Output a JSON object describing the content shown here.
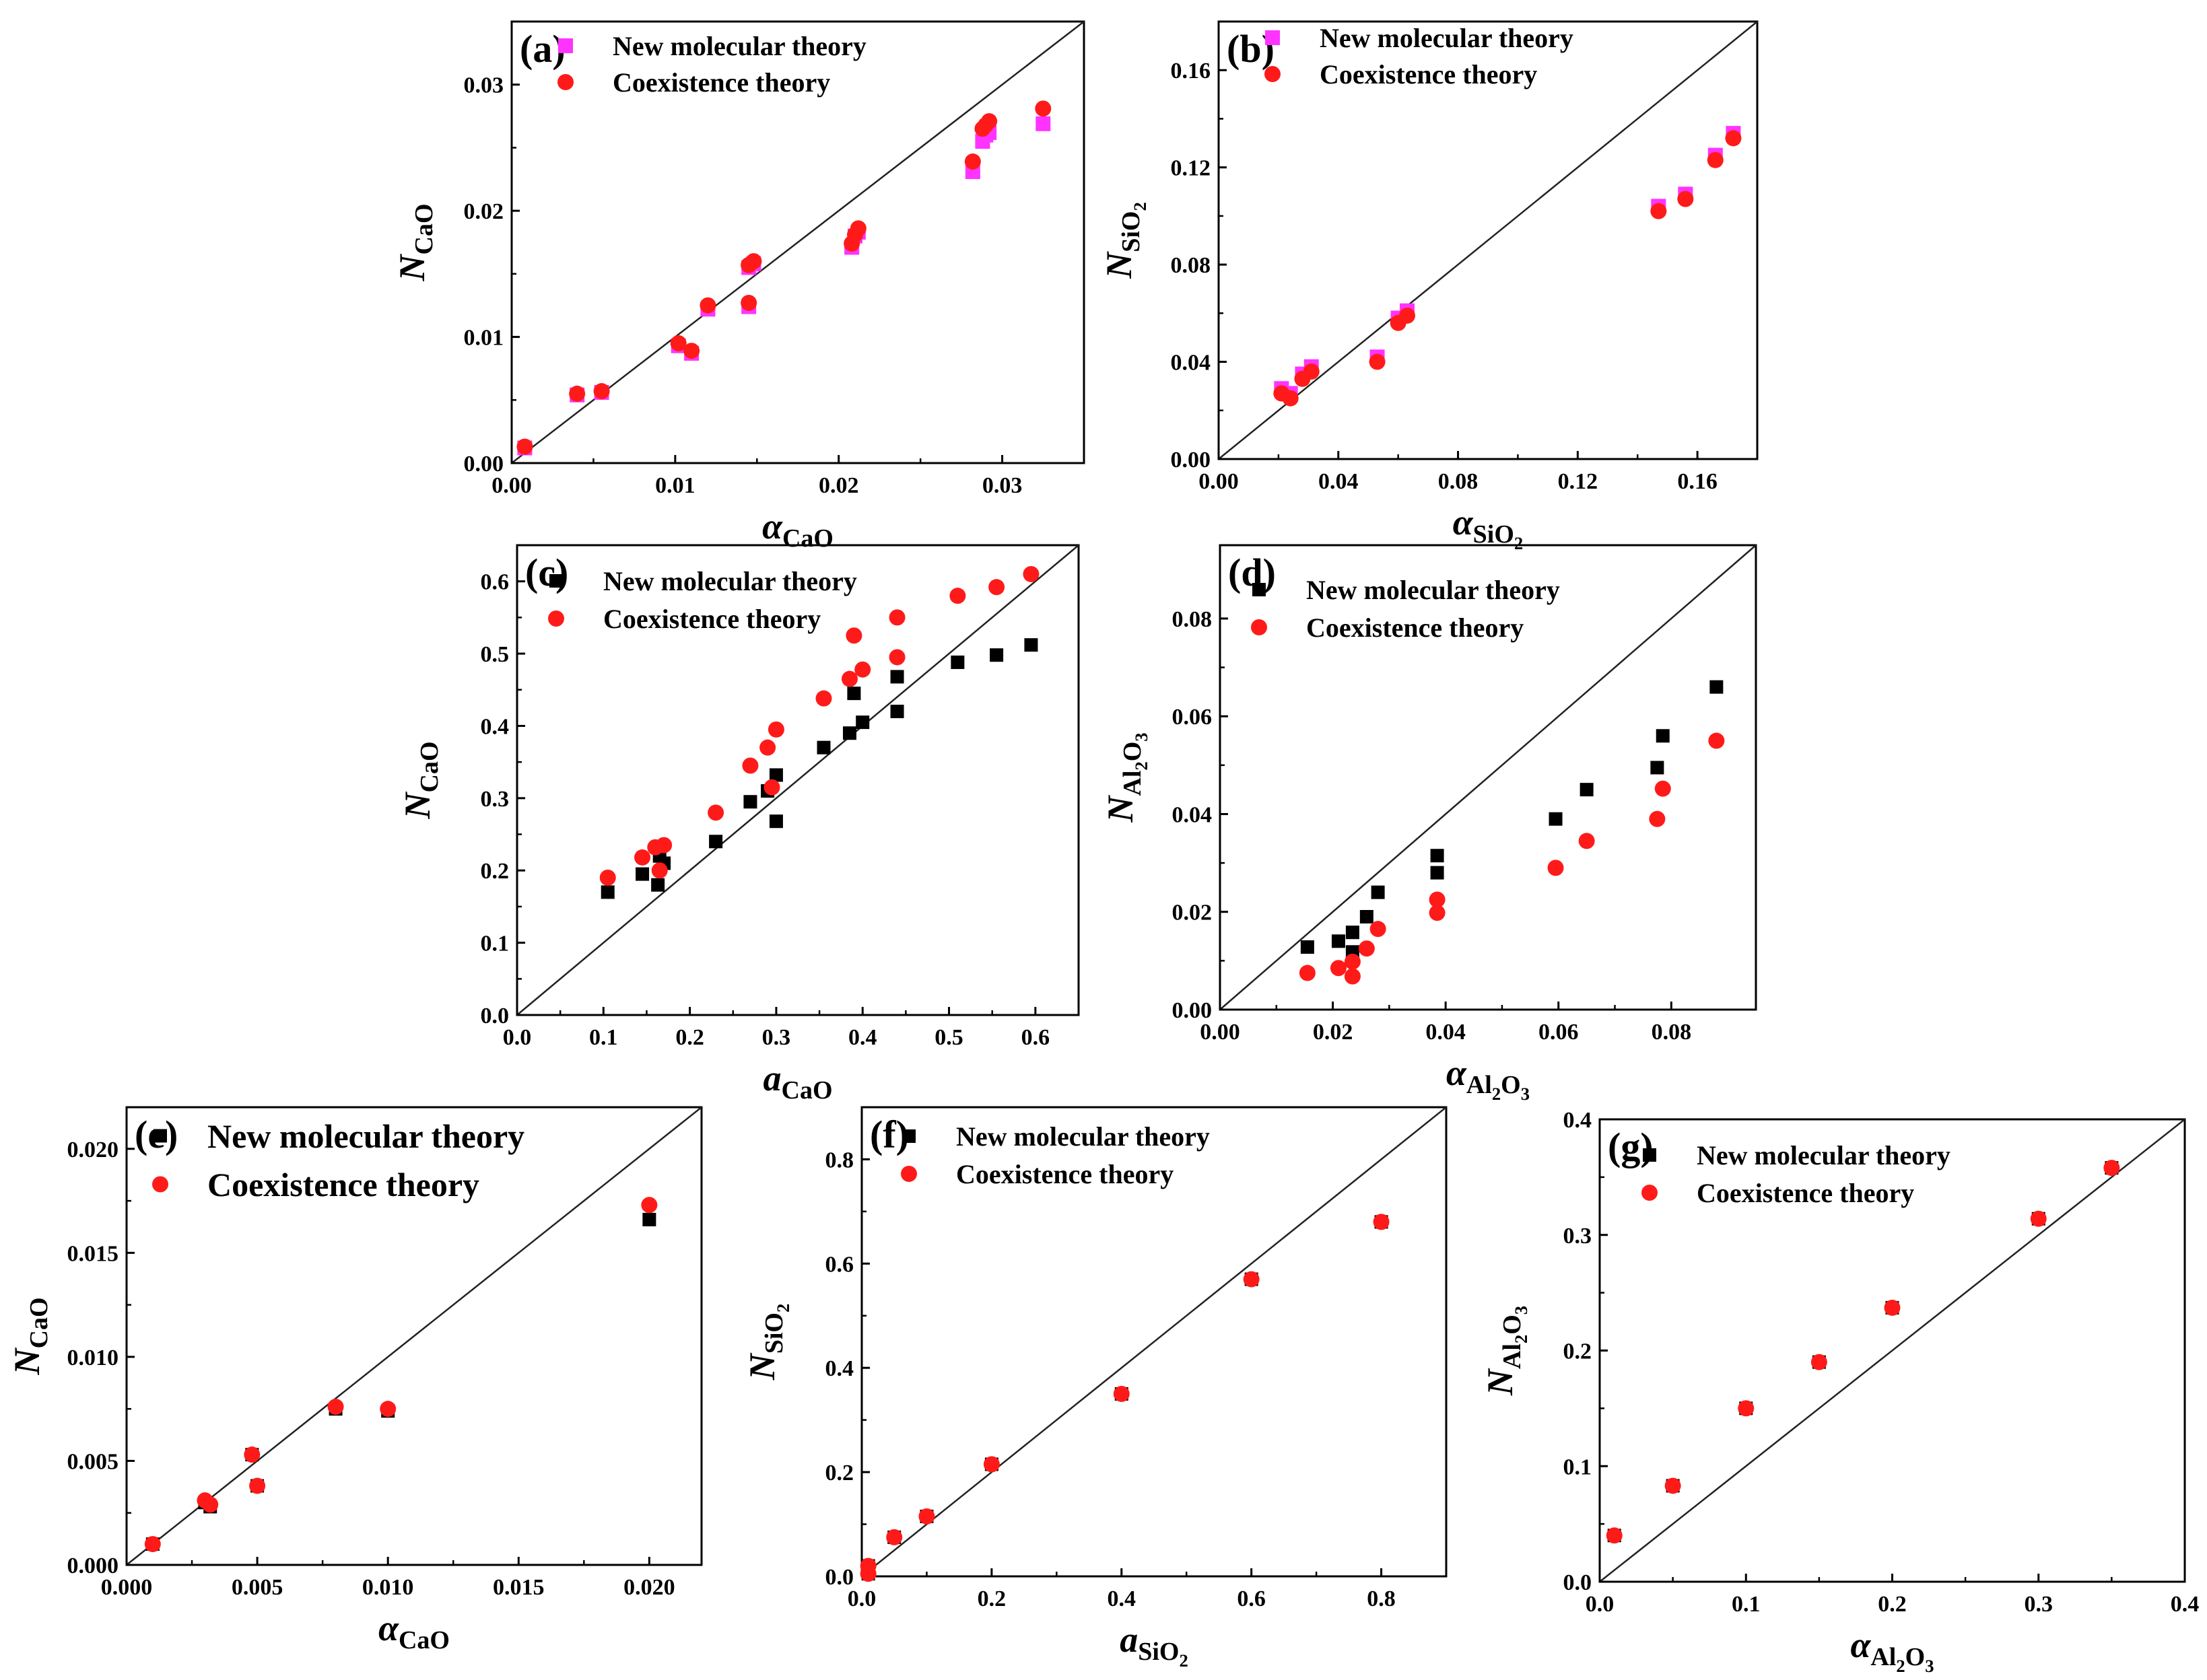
{
  "figure": {
    "legend": {
      "new_molecular": "New molecular theory",
      "coexistence": "Coexistence theory"
    },
    "colors": {
      "new_molecular_magenta": "#ff33ff",
      "new_molecular_black": "#000000",
      "coexistence": "#ff1a1a",
      "axis": "#000000"
    }
  },
  "chart_data": [
    {
      "id": "a",
      "type": "scatter",
      "panel_label": "(a)",
      "title": "",
      "xlabel": {
        "sym": "α",
        "sub": "CaO"
      },
      "ylabel": {
        "sym": "N",
        "sub": "CaO"
      },
      "xlim": [
        0,
        0.035
      ],
      "ylim": [
        0,
        0.035
      ],
      "xticks": [
        0.0,
        0.01,
        0.02,
        0.03
      ],
      "xtick_labels": [
        "0.00",
        "0.01",
        "0.02",
        "0.03"
      ],
      "yticks": [
        0.0,
        0.01,
        0.02,
        0.03
      ],
      "ytick_labels": [
        "0.00",
        "0.01",
        "0.02",
        "0.03"
      ],
      "diagonal": true,
      "legend_position": "top-left",
      "series": [
        {
          "name": "New molecular theory",
          "marker": "square",
          "color": "#ff33ff",
          "points": [
            [
              0.0008,
              0.0012
            ],
            [
              0.004,
              0.0054
            ],
            [
              0.0055,
              0.0056
            ],
            [
              0.0102,
              0.0093
            ],
            [
              0.011,
              0.0087
            ],
            [
              0.012,
              0.0122
            ],
            [
              0.0145,
              0.0124
            ],
            [
              0.0145,
              0.0155
            ],
            [
              0.0148,
              0.0158
            ],
            [
              0.0208,
              0.0171
            ],
            [
              0.021,
              0.018
            ],
            [
              0.0212,
              0.0183
            ],
            [
              0.0282,
              0.0231
            ],
            [
              0.0288,
              0.0255
            ],
            [
              0.029,
              0.026
            ],
            [
              0.0292,
              0.0262
            ],
            [
              0.0325,
              0.0269
            ]
          ]
        },
        {
          "name": "Coexistence theory",
          "marker": "circle",
          "color": "#ff1a1a",
          "points": [
            [
              0.0008,
              0.0013
            ],
            [
              0.004,
              0.0055
            ],
            [
              0.0055,
              0.0057
            ],
            [
              0.0102,
              0.0095
            ],
            [
              0.011,
              0.0089
            ],
            [
              0.012,
              0.0125
            ],
            [
              0.0145,
              0.0127
            ],
            [
              0.0145,
              0.0157
            ],
            [
              0.0148,
              0.016
            ],
            [
              0.0208,
              0.0174
            ],
            [
              0.021,
              0.0181
            ],
            [
              0.0212,
              0.0186
            ],
            [
              0.0282,
              0.0239
            ],
            [
              0.0288,
              0.0265
            ],
            [
              0.029,
              0.0268
            ],
            [
              0.0292,
              0.0271
            ],
            [
              0.0325,
              0.0281
            ]
          ]
        }
      ]
    },
    {
      "id": "b",
      "type": "scatter",
      "panel_label": "(b)",
      "title": "",
      "xlabel": {
        "sym": "α",
        "sub": "SiO2"
      },
      "ylabel": {
        "sym": "N",
        "sub": "SiO2"
      },
      "xlim": [
        0,
        0.18
      ],
      "ylim": [
        0,
        0.18
      ],
      "xticks": [
        0,
        0.04,
        0.08,
        0.12,
        0.16
      ],
      "xtick_labels": [
        "0.00",
        "0.04",
        "0.08",
        "0.12",
        "0.16"
      ],
      "yticks": [
        0,
        0.04,
        0.08,
        0.12,
        0.16
      ],
      "ytick_labels": [
        "0.00",
        "0.04",
        "0.08",
        "0.12",
        "0.16"
      ],
      "diagonal": true,
      "legend_position": "top-left",
      "series": [
        {
          "name": "New molecular theory",
          "marker": "square",
          "color": "#ff33ff",
          "points": [
            [
              0.021,
              0.029
            ],
            [
              0.024,
              0.027
            ],
            [
              0.028,
              0.035
            ],
            [
              0.031,
              0.038
            ],
            [
              0.053,
              0.042
            ],
            [
              0.06,
              0.058
            ],
            [
              0.063,
              0.061
            ],
            [
              0.147,
              0.104
            ],
            [
              0.156,
              0.109
            ],
            [
              0.166,
              0.125
            ],
            [
              0.172,
              0.134
            ]
          ]
        },
        {
          "name": "Coexistence theory",
          "marker": "circle",
          "color": "#ff1a1a",
          "points": [
            [
              0.021,
              0.027
            ],
            [
              0.024,
              0.025
            ],
            [
              0.028,
              0.033
            ],
            [
              0.031,
              0.036
            ],
            [
              0.053,
              0.04
            ],
            [
              0.06,
              0.056
            ],
            [
              0.063,
              0.059
            ],
            [
              0.147,
              0.102
            ],
            [
              0.156,
              0.107
            ],
            [
              0.166,
              0.123
            ],
            [
              0.172,
              0.132
            ]
          ]
        }
      ]
    },
    {
      "id": "c",
      "type": "scatter",
      "panel_label": "(c)",
      "title": "",
      "xlabel": {
        "sym": "a",
        "sub": "CaO"
      },
      "ylabel": {
        "sym": "N",
        "sub": "CaO"
      },
      "xlim": [
        0,
        0.65
      ],
      "ylim": [
        0,
        0.65
      ],
      "xticks": [
        0,
        0.1,
        0.2,
        0.3,
        0.4,
        0.5,
        0.6
      ],
      "xtick_labels": [
        "0.0",
        "0.1",
        "0.2",
        "0.3",
        "0.4",
        "0.5",
        "0.6"
      ],
      "yticks": [
        0,
        0.1,
        0.2,
        0.3,
        0.4,
        0.5,
        0.6
      ],
      "ytick_labels": [
        "0.0",
        "0.1",
        "0.2",
        "0.3",
        "0.4",
        "0.5",
        "0.6"
      ],
      "diagonal": true,
      "legend_position": "top-left",
      "series": [
        {
          "name": "New molecular theory",
          "marker": "square",
          "color": "#000000",
          "points": [
            [
              0.105,
              0.17
            ],
            [
              0.145,
              0.195
            ],
            [
              0.163,
              0.18
            ],
            [
              0.165,
              0.22
            ],
            [
              0.17,
              0.21
            ],
            [
              0.23,
              0.24
            ],
            [
              0.27,
              0.295
            ],
            [
              0.29,
              0.31
            ],
            [
              0.3,
              0.268
            ],
            [
              0.3,
              0.332
            ],
            [
              0.355,
              0.37
            ],
            [
              0.385,
              0.39
            ],
            [
              0.39,
              0.445
            ],
            [
              0.4,
              0.405
            ],
            [
              0.44,
              0.42
            ],
            [
              0.44,
              0.468
            ],
            [
              0.51,
              0.488
            ],
            [
              0.555,
              0.498
            ],
            [
              0.595,
              0.512
            ]
          ]
        },
        {
          "name": "Coexistence theory",
          "marker": "circle",
          "color": "#ff1a1a",
          "points": [
            [
              0.105,
              0.19
            ],
            [
              0.145,
              0.218
            ],
            [
              0.16,
              0.232
            ],
            [
              0.165,
              0.2
            ],
            [
              0.17,
              0.235
            ],
            [
              0.23,
              0.28
            ],
            [
              0.27,
              0.345
            ],
            [
              0.29,
              0.37
            ],
            [
              0.295,
              0.315
            ],
            [
              0.3,
              0.395
            ],
            [
              0.355,
              0.438
            ],
            [
              0.385,
              0.465
            ],
            [
              0.39,
              0.525
            ],
            [
              0.4,
              0.478
            ],
            [
              0.44,
              0.55
            ],
            [
              0.44,
              0.495
            ],
            [
              0.51,
              0.58
            ],
            [
              0.555,
              0.592
            ],
            [
              0.595,
              0.61
            ]
          ]
        }
      ]
    },
    {
      "id": "d",
      "type": "scatter",
      "panel_label": "(d)",
      "title": "",
      "xlabel": {
        "sym": "α",
        "sub": "Al2O3"
      },
      "ylabel": {
        "sym": "N",
        "sub": "Al2O3"
      },
      "xlim": [
        0,
        0.095
      ],
      "ylim": [
        0,
        0.095
      ],
      "xticks": [
        0,
        0.02,
        0.04,
        0.06,
        0.08
      ],
      "xtick_labels": [
        "0.00",
        "0.02",
        "0.04",
        "0.06",
        "0.08"
      ],
      "yticks": [
        0,
        0.02,
        0.04,
        0.06,
        0.08
      ],
      "ytick_labels": [
        "0.00",
        "0.02",
        "0.04",
        "0.06",
        "0.08"
      ],
      "diagonal": true,
      "legend_position": "top-left",
      "series": [
        {
          "name": "New molecular theory",
          "marker": "square",
          "color": "#000000",
          "points": [
            [
              0.0155,
              0.0128
            ],
            [
              0.021,
              0.014
            ],
            [
              0.0235,
              0.0118
            ],
            [
              0.0235,
              0.0158
            ],
            [
              0.026,
              0.019
            ],
            [
              0.028,
              0.024
            ],
            [
              0.0385,
              0.028
            ],
            [
              0.0385,
              0.0315
            ],
            [
              0.0595,
              0.039
            ],
            [
              0.065,
              0.045
            ],
            [
              0.0775,
              0.0495
            ],
            [
              0.0785,
              0.056
            ],
            [
              0.088,
              0.066
            ]
          ]
        },
        {
          "name": "Coexistence theory",
          "marker": "circle",
          "color": "#ff1a1a",
          "points": [
            [
              0.0155,
              0.0075
            ],
            [
              0.021,
              0.0085
            ],
            [
              0.0235,
              0.0068
            ],
            [
              0.0235,
              0.0098
            ],
            [
              0.026,
              0.0125
            ],
            [
              0.028,
              0.0165
            ],
            [
              0.0385,
              0.0198
            ],
            [
              0.0385,
              0.0225
            ],
            [
              0.0595,
              0.029
            ],
            [
              0.065,
              0.0345
            ],
            [
              0.0775,
              0.039
            ],
            [
              0.0785,
              0.0452
            ],
            [
              0.088,
              0.055
            ]
          ]
        }
      ]
    },
    {
      "id": "e",
      "type": "scatter",
      "panel_label": "(e)",
      "title": "",
      "xlabel": {
        "sym": "α",
        "sub": "CaO"
      },
      "ylabel": {
        "sym": "N",
        "sub": "CaO"
      },
      "xlim": [
        0,
        0.022
      ],
      "ylim": [
        0,
        0.022
      ],
      "xticks": [
        0,
        0.005,
        0.01,
        0.015,
        0.02
      ],
      "xtick_labels": [
        "0.000",
        "0.005",
        "0.010",
        "0.015",
        "0.020"
      ],
      "yticks": [
        0,
        0.005,
        0.01,
        0.015,
        0.02
      ],
      "ytick_labels": [
        "0.000",
        "0.005",
        "0.010",
        "0.015",
        "0.020"
      ],
      "diagonal": true,
      "legend_position": "top-left",
      "series": [
        {
          "name": "New molecular theory",
          "marker": "square",
          "color": "#000000",
          "points": [
            [
              0.001,
              0.001
            ],
            [
              0.003,
              0.003
            ],
            [
              0.0032,
              0.0028
            ],
            [
              0.0048,
              0.0053
            ],
            [
              0.005,
              0.0038
            ],
            [
              0.008,
              0.0075
            ],
            [
              0.01,
              0.0074
            ],
            [
              0.02,
              0.0166
            ]
          ]
        },
        {
          "name": "Coexistence theory",
          "marker": "circle",
          "color": "#ff1a1a",
          "points": [
            [
              0.001,
              0.001
            ],
            [
              0.003,
              0.0031
            ],
            [
              0.0032,
              0.0029
            ],
            [
              0.0048,
              0.0053
            ],
            [
              0.005,
              0.0038
            ],
            [
              0.008,
              0.0076
            ],
            [
              0.01,
              0.0075
            ],
            [
              0.02,
              0.0173
            ]
          ]
        }
      ]
    },
    {
      "id": "f",
      "type": "scatter",
      "panel_label": "(f)",
      "title": "",
      "xlabel": {
        "sym": "a",
        "sub": "SiO2"
      },
      "ylabel": {
        "sym": "N",
        "sub": "SiO2"
      },
      "xlim": [
        0,
        0.9
      ],
      "ylim": [
        0,
        0.9
      ],
      "xticks": [
        0,
        0.2,
        0.4,
        0.6,
        0.8
      ],
      "xtick_labels": [
        "0.0",
        "0.2",
        "0.4",
        "0.6",
        "0.8"
      ],
      "yticks": [
        0,
        0.2,
        0.4,
        0.6,
        0.8
      ],
      "ytick_labels": [
        "0.0",
        "0.2",
        "0.4",
        "0.6",
        "0.8"
      ],
      "diagonal": true,
      "legend_position": "top-left",
      "series": [
        {
          "name": "New molecular theory",
          "marker": "square",
          "color": "#000000",
          "points": [
            [
              0.01,
              0.02
            ],
            [
              0.01,
              0.005
            ],
            [
              0.05,
              0.075
            ],
            [
              0.1,
              0.115
            ],
            [
              0.2,
              0.215
            ],
            [
              0.4,
              0.35
            ],
            [
              0.6,
              0.57
            ],
            [
              0.8,
              0.68
            ]
          ]
        },
        {
          "name": "Coexistence theory",
          "marker": "circle",
          "color": "#ff1a1a",
          "points": [
            [
              0.01,
              0.02
            ],
            [
              0.01,
              0.005
            ],
            [
              0.05,
              0.075
            ],
            [
              0.1,
              0.115
            ],
            [
              0.2,
              0.215
            ],
            [
              0.4,
              0.35
            ],
            [
              0.6,
              0.57
            ],
            [
              0.8,
              0.68
            ]
          ]
        }
      ]
    },
    {
      "id": "g",
      "type": "scatter",
      "panel_label": "(g)",
      "title": "",
      "xlabel": {
        "sym": "α",
        "sub": "Al2O3"
      },
      "ylabel": {
        "sym": "N",
        "sub": "Al2O3"
      },
      "xlim": [
        0,
        0.4
      ],
      "ylim": [
        0,
        0.4
      ],
      "xticks": [
        0,
        0.1,
        0.2,
        0.3,
        0.4
      ],
      "xtick_labels": [
        "0.0",
        "0.1",
        "0.2",
        "0.3",
        "0.4"
      ],
      "yticks": [
        0,
        0.1,
        0.2,
        0.3,
        0.4
      ],
      "ytick_labels": [
        "0.0",
        "0.1",
        "0.2",
        "0.3",
        "0.4"
      ],
      "diagonal": true,
      "legend_position": "top-left",
      "series": [
        {
          "name": "New molecular theory",
          "marker": "square",
          "color": "#000000",
          "points": [
            [
              0.01,
              0.04
            ],
            [
              0.05,
              0.083
            ],
            [
              0.1,
              0.15
            ],
            [
              0.15,
              0.19
            ],
            [
              0.2,
              0.237
            ],
            [
              0.3,
              0.314
            ],
            [
              0.35,
              0.358
            ]
          ]
        },
        {
          "name": "Coexistence theory",
          "marker": "circle",
          "color": "#ff1a1a",
          "points": [
            [
              0.01,
              0.04
            ],
            [
              0.05,
              0.083
            ],
            [
              0.1,
              0.15
            ],
            [
              0.15,
              0.19
            ],
            [
              0.2,
              0.237
            ],
            [
              0.3,
              0.314
            ],
            [
              0.35,
              0.358
            ]
          ]
        }
      ]
    }
  ]
}
